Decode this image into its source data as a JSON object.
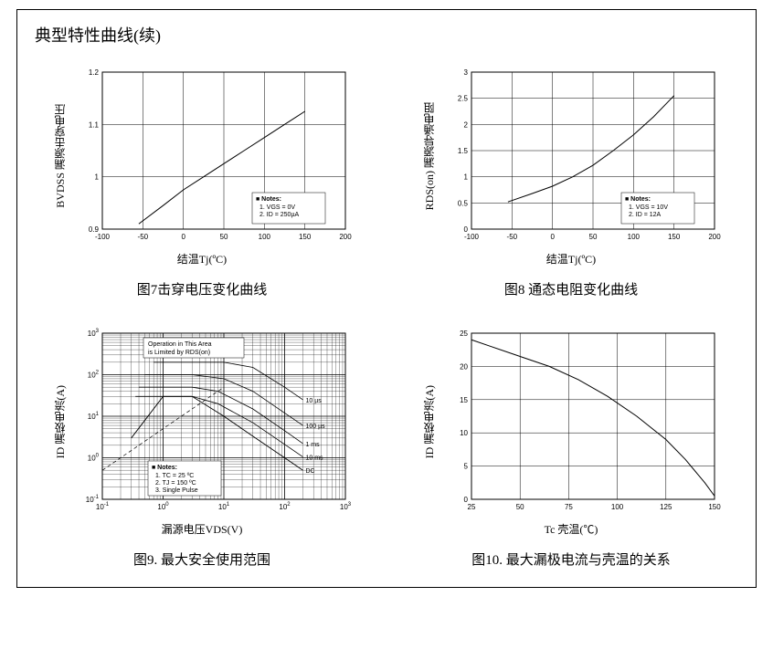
{
  "page_title": "典型特性曲线(续)",
  "fig7": {
    "type": "line",
    "caption": "图7击穿电压变化曲线",
    "ylabel": "BVDSS 漏源击穿电压",
    "xlabel": "结温Tj(ºC)",
    "xlim": [
      -100,
      200
    ],
    "ylim": [
      0.9,
      1.2
    ],
    "xticks": [
      -100,
      -50,
      0,
      50,
      100,
      150,
      200
    ],
    "yticks": [
      0.9,
      1.0,
      1.1,
      1.2
    ],
    "data": [
      [
        -55,
        0.91
      ],
      [
        -25,
        0.945
      ],
      [
        0,
        0.975
      ],
      [
        25,
        1.0
      ],
      [
        50,
        1.025
      ],
      [
        75,
        1.05
      ],
      [
        100,
        1.075
      ],
      [
        125,
        1.1
      ],
      [
        150,
        1.125
      ]
    ],
    "line_color": "#000000",
    "line_width": 1.0,
    "grid_color": "#000000",
    "background_color": "#ffffff",
    "notes_title": "■ Notes:",
    "notes": [
      "1. VGS = 0V",
      "2. ID = 250µA"
    ]
  },
  "fig8": {
    "type": "line",
    "caption": "图8 通态电阻变化曲线",
    "ylabel": "RDS(on) 漏源导通电阻",
    "xlabel": "结温Tj(ºC)",
    "xlim": [
      -100,
      200
    ],
    "ylim": [
      0,
      3.0
    ],
    "xticks": [
      -100,
      -50,
      0,
      50,
      100,
      150,
      200
    ],
    "yticks": [
      0,
      0.5,
      1.0,
      1.5,
      2.0,
      2.5,
      3.0
    ],
    "data": [
      [
        -55,
        0.52
      ],
      [
        -25,
        0.68
      ],
      [
        0,
        0.82
      ],
      [
        25,
        1.0
      ],
      [
        50,
        1.22
      ],
      [
        75,
        1.5
      ],
      [
        100,
        1.8
      ],
      [
        125,
        2.15
      ],
      [
        150,
        2.55
      ]
    ],
    "line_color": "#000000",
    "line_width": 1.0,
    "grid_color": "#000000",
    "background_color": "#ffffff",
    "notes_title": "■ Notes:",
    "notes": [
      "1. VGS = 10V",
      "2. ID = 12A"
    ]
  },
  "fig9": {
    "type": "loglog-soa",
    "caption": "图9. 最大安全使用范围",
    "ylabel": "ID 漏极电流(A)",
    "xlabel": "漏源电压VDS(V)",
    "xlim_exp": [
      -1,
      3
    ],
    "ylim_exp": [
      -1,
      3
    ],
    "xticks_exp": [
      -1,
      0,
      1,
      2,
      3
    ],
    "yticks_exp": [
      -1,
      0,
      1,
      2,
      3
    ],
    "region_label": "Operation in This Area is Limited by RDS(on)",
    "curve_labels": [
      "10 µs",
      "100 µs",
      "1 ms",
      "10 ms",
      "DC"
    ],
    "line_color": "#000000",
    "grid_color": "#000000",
    "background_color": "#ffffff",
    "notes_title": "■ Notes:",
    "notes": [
      "1. TC = 25 ºC",
      "2. TJ = 150 ºC",
      "3. Single Pulse"
    ],
    "dc_curve": [
      [
        0.3,
        3
      ],
      [
        1,
        30
      ],
      [
        3,
        30
      ],
      [
        10,
        10
      ],
      [
        30,
        3.3
      ],
      [
        100,
        1
      ],
      [
        200,
        0.5
      ]
    ],
    "pulse_curves": {
      "10us": [
        [
          0.7,
          200
        ],
        [
          3,
          200
        ],
        [
          10,
          200
        ],
        [
          30,
          150
        ],
        [
          100,
          50
        ],
        [
          200,
          25
        ]
      ],
      "100us": [
        [
          0.5,
          100
        ],
        [
          3,
          100
        ],
        [
          10,
          80
        ],
        [
          30,
          40
        ],
        [
          100,
          12
        ],
        [
          200,
          6
        ]
      ],
      "1ms": [
        [
          0.4,
          50
        ],
        [
          3,
          50
        ],
        [
          8,
          40
        ],
        [
          30,
          15
        ],
        [
          100,
          4.5
        ],
        [
          200,
          2.2
        ]
      ],
      "10ms": [
        [
          0.35,
          30
        ],
        [
          3,
          30
        ],
        [
          8,
          20
        ],
        [
          30,
          7
        ],
        [
          100,
          2.1
        ],
        [
          200,
          1.05
        ]
      ]
    },
    "rds_line": [
      [
        0.1,
        0.5
      ],
      [
        10,
        50
      ]
    ]
  },
  "fig10": {
    "type": "line",
    "caption": "图10. 最大漏极电流与壳温的关系",
    "ylabel": "ID 漏极电流(A)",
    "xlabel": "Tc 壳温(℃)",
    "xlim": [
      25,
      150
    ],
    "ylim": [
      0,
      25
    ],
    "xticks": [
      25,
      50,
      75,
      100,
      125,
      150
    ],
    "yticks": [
      0,
      5,
      10,
      15,
      20,
      25
    ],
    "data": [
      [
        25,
        24
      ],
      [
        35,
        23
      ],
      [
        50,
        21.5
      ],
      [
        65,
        20
      ],
      [
        80,
        18
      ],
      [
        95,
        15.5
      ],
      [
        110,
        12.5
      ],
      [
        125,
        9
      ],
      [
        135,
        6
      ],
      [
        145,
        2.5
      ],
      [
        150,
        0.5
      ]
    ],
    "line_color": "#000000",
    "line_width": 1.0,
    "grid_color": "#000000",
    "background_color": "#ffffff"
  }
}
